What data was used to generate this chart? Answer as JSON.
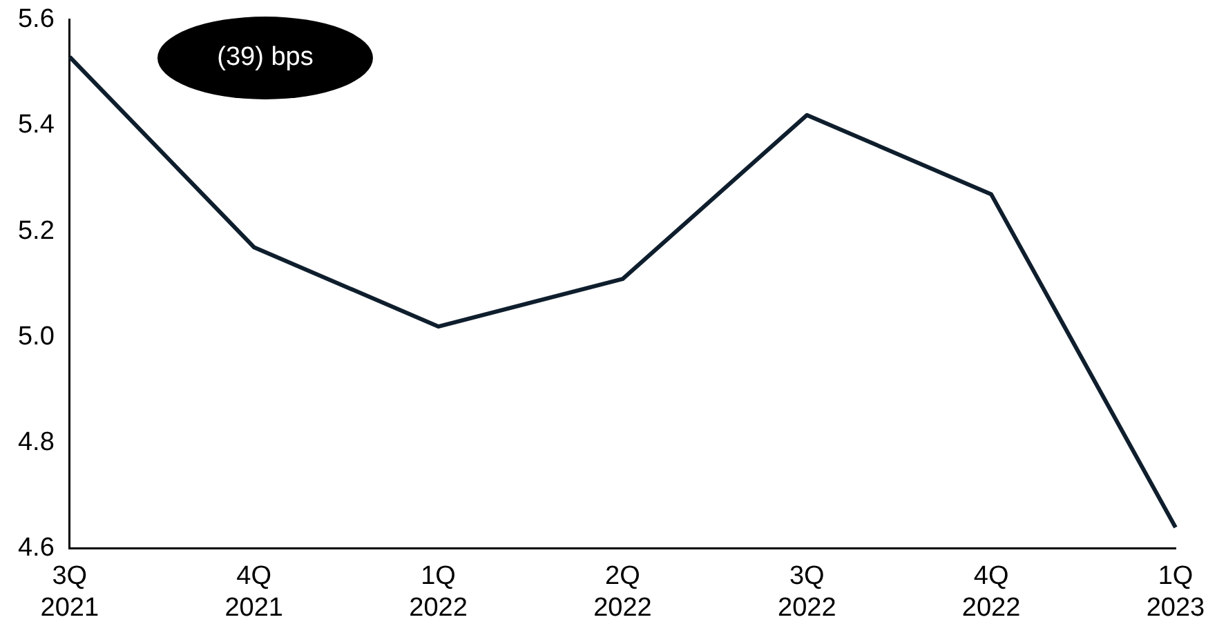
{
  "chart_data": {
    "type": "line",
    "categories": [
      "3Q 2021",
      "4Q 2021",
      "1Q 2022",
      "2Q 2022",
      "3Q 2022",
      "4Q 2022",
      "1Q 2023"
    ],
    "series": [
      {
        "color": "#0f1e2d",
        "values": [
          5.53,
          5.17,
          5.02,
          5.11,
          5.42,
          5.27,
          4.64
        ]
      }
    ],
    "ylim": [
      4.6,
      5.6
    ],
    "yticks": [
      {
        "value": 4.6,
        "label": "4.6"
      },
      {
        "value": 4.8,
        "label": "4.8"
      },
      {
        "value": 5.0,
        "label": "5.0"
      },
      {
        "value": 5.2,
        "label": "5.2"
      },
      {
        "value": 5.4,
        "label": "5.4"
      },
      {
        "value": 5.6,
        "label": "5.6"
      }
    ],
    "annotations": [
      "(39) bps"
    ],
    "grid": false,
    "legend": false,
    "marker": "none",
    "line_style": "solid"
  }
}
